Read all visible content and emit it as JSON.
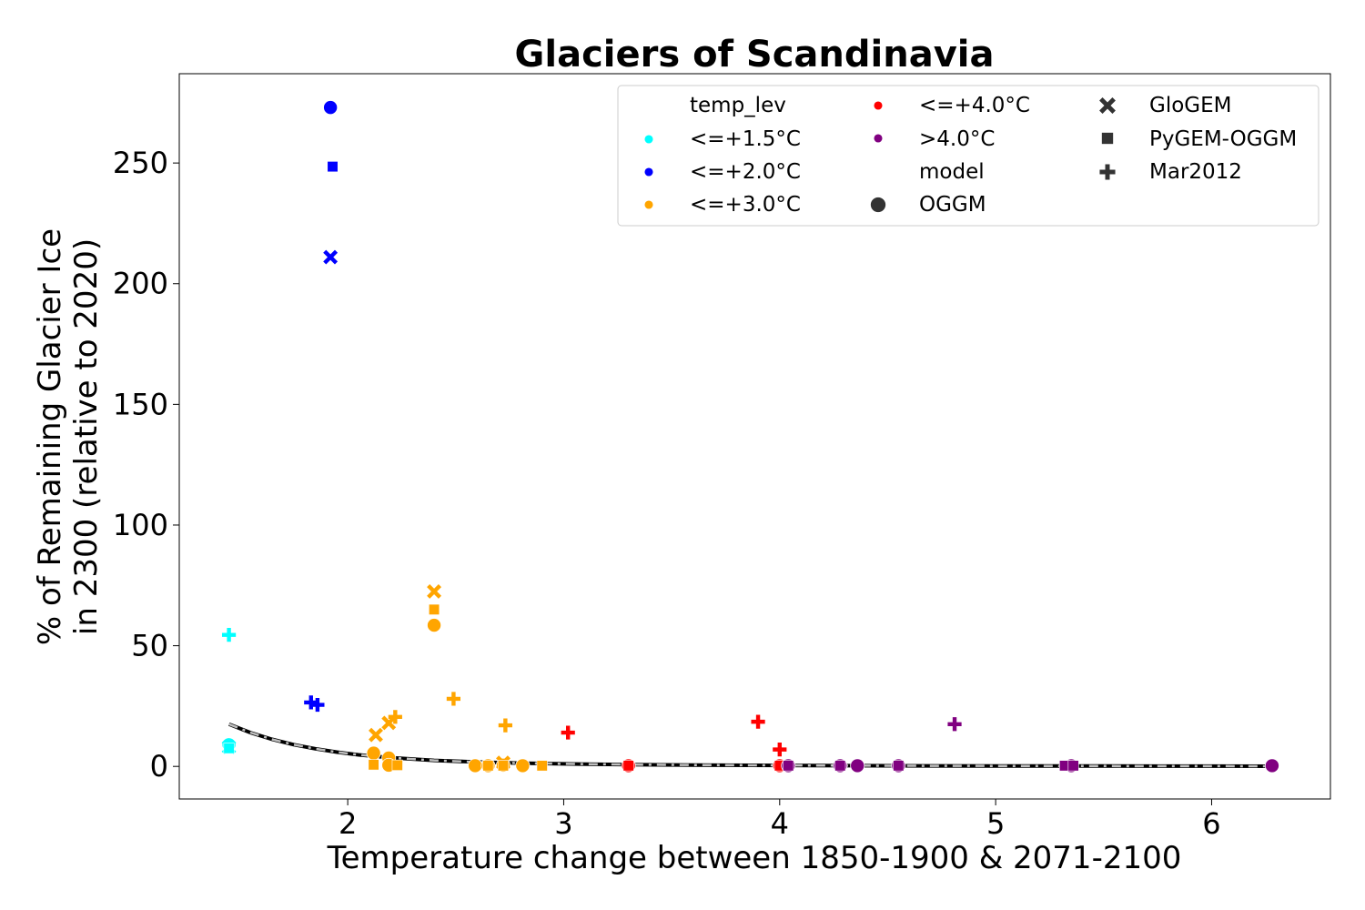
{
  "chart_data": {
    "type": "scatter",
    "title": "Glaciers of Scandinavia",
    "xlabel": "Temperature change between 1850-1900 & 2071-2100",
    "ylabel_lines": [
      "% of Remaining Glacier Ice",
      "in 2300 (relative to 2020)"
    ],
    "xlim": [
      1.22,
      6.55
    ],
    "ylim": [
      -13.5,
      287
    ],
    "xticks": [
      2,
      3,
      4,
      5,
      6
    ],
    "yticks": [
      0,
      50,
      100,
      150,
      200,
      250
    ],
    "grid": false,
    "legend_placement": "top-right",
    "colors": {
      "<=+1.5°C": "#00ffff",
      "<=+2.0°C": "#0000ff",
      "<=+3.0°C": "#ffa500",
      "<=+4.0°C": "#ff0000",
      ">4.0°C": "#800080",
      "fit": "#000000",
      "fit_dash": "#bfbfbf"
    },
    "legend": {
      "temp_title": "temp_lev",
      "model_title": "model",
      "temp_levels": [
        "<=+1.5°C",
        "<=+2.0°C",
        "<=+3.0°C",
        "<=+4.0°C",
        ">4.0°C"
      ],
      "models": [
        {
          "name": "OGGM",
          "marker": "circle"
        },
        {
          "name": "GloGEM",
          "marker": "x"
        },
        {
          "name": "PyGEM-OGGM",
          "marker": "square"
        },
        {
          "name": "Mar2012",
          "marker": "plus"
        }
      ]
    },
    "points": [
      {
        "x": 1.45,
        "y": 9,
        "level": "<=+1.5°C",
        "model": "OGGM"
      },
      {
        "x": 1.45,
        "y": 8,
        "level": "<=+1.5°C",
        "model": "GloGEM"
      },
      {
        "x": 1.45,
        "y": 7.5,
        "level": "<=+1.5°C",
        "model": "PyGEM-OGGM"
      },
      {
        "x": 1.45,
        "y": 54.5,
        "level": "<=+1.5°C",
        "model": "Mar2012"
      },
      {
        "x": 1.92,
        "y": 273,
        "level": "<=+2.0°C",
        "model": "OGGM"
      },
      {
        "x": 1.92,
        "y": 211,
        "level": "<=+2.0°C",
        "model": "GloGEM"
      },
      {
        "x": 1.93,
        "y": 248.5,
        "level": "<=+2.0°C",
        "model": "PyGEM-OGGM"
      },
      {
        "x": 1.83,
        "y": 26.5,
        "level": "<=+2.0°C",
        "model": "Mar2012"
      },
      {
        "x": 1.86,
        "y": 25.5,
        "level": "<=+2.0°C",
        "model": "Mar2012"
      },
      {
        "x": 2.12,
        "y": 5.5,
        "level": "<=+3.0°C",
        "model": "OGGM"
      },
      {
        "x": 2.19,
        "y": 3.5,
        "level": "<=+3.0°C",
        "model": "OGGM"
      },
      {
        "x": 2.19,
        "y": 0.5,
        "level": "<=+3.0°C",
        "model": "OGGM"
      },
      {
        "x": 2.4,
        "y": 58.5,
        "level": "<=+3.0°C",
        "model": "OGGM"
      },
      {
        "x": 2.59,
        "y": 0.3,
        "level": "<=+3.0°C",
        "model": "OGGM"
      },
      {
        "x": 2.65,
        "y": 0.3,
        "level": "<=+3.0°C",
        "model": "OGGM"
      },
      {
        "x": 2.72,
        "y": 0.5,
        "level": "<=+3.0°C",
        "model": "OGGM"
      },
      {
        "x": 2.81,
        "y": 0.3,
        "level": "<=+3.0°C",
        "model": "OGGM"
      },
      {
        "x": 2.13,
        "y": 13,
        "level": "<=+3.0°C",
        "model": "GloGEM"
      },
      {
        "x": 2.19,
        "y": 18,
        "level": "<=+3.0°C",
        "model": "GloGEM"
      },
      {
        "x": 2.4,
        "y": 72.5,
        "level": "<=+3.0°C",
        "model": "GloGEM"
      },
      {
        "x": 2.72,
        "y": 1.5,
        "level": "<=+3.0°C",
        "model": "GloGEM"
      },
      {
        "x": 2.12,
        "y": 0.7,
        "level": "<=+3.0°C",
        "model": "PyGEM-OGGM"
      },
      {
        "x": 2.23,
        "y": 0.5,
        "level": "<=+3.0°C",
        "model": "PyGEM-OGGM"
      },
      {
        "x": 2.4,
        "y": 65,
        "level": "<=+3.0°C",
        "model": "PyGEM-OGGM"
      },
      {
        "x": 2.65,
        "y": 0.3,
        "level": "<=+3.0°C",
        "model": "PyGEM-OGGM"
      },
      {
        "x": 2.72,
        "y": 0.3,
        "level": "<=+3.0°C",
        "model": "PyGEM-OGGM"
      },
      {
        "x": 2.9,
        "y": 0.3,
        "level": "<=+3.0°C",
        "model": "PyGEM-OGGM"
      },
      {
        "x": 2.22,
        "y": 20.5,
        "level": "<=+3.0°C",
        "model": "Mar2012"
      },
      {
        "x": 2.49,
        "y": 28,
        "level": "<=+3.0°C",
        "model": "Mar2012"
      },
      {
        "x": 2.73,
        "y": 17,
        "level": "<=+3.0°C",
        "model": "Mar2012"
      },
      {
        "x": 3.3,
        "y": 0.3,
        "level": "<=+4.0°C",
        "model": "OGGM"
      },
      {
        "x": 4.0,
        "y": 0.3,
        "level": "<=+4.0°C",
        "model": "OGGM"
      },
      {
        "x": 3.3,
        "y": 0.3,
        "level": "<=+4.0°C",
        "model": "PyGEM-OGGM"
      },
      {
        "x": 4.0,
        "y": 0.3,
        "level": "<=+4.0°C",
        "model": "PyGEM-OGGM"
      },
      {
        "x": 3.02,
        "y": 14,
        "level": "<=+4.0°C",
        "model": "Mar2012"
      },
      {
        "x": 3.9,
        "y": 18.5,
        "level": "<=+4.0°C",
        "model": "Mar2012"
      },
      {
        "x": 4.0,
        "y": 7,
        "level": "<=+4.0°C",
        "model": "Mar2012"
      },
      {
        "x": 4.04,
        "y": 0.3,
        "level": ">4.0°C",
        "model": "OGGM"
      },
      {
        "x": 4.28,
        "y": 0.3,
        "level": ">4.0°C",
        "model": "OGGM"
      },
      {
        "x": 4.36,
        "y": 0.3,
        "level": ">4.0°C",
        "model": "OGGM"
      },
      {
        "x": 4.55,
        "y": 0.3,
        "level": ">4.0°C",
        "model": "OGGM"
      },
      {
        "x": 5.35,
        "y": 0.3,
        "level": ">4.0°C",
        "model": "OGGM"
      },
      {
        "x": 6.28,
        "y": 0.3,
        "level": ">4.0°C",
        "model": "OGGM"
      },
      {
        "x": 4.04,
        "y": 0.3,
        "level": ">4.0°C",
        "model": "PyGEM-OGGM"
      },
      {
        "x": 4.28,
        "y": 0.3,
        "level": ">4.0°C",
        "model": "PyGEM-OGGM"
      },
      {
        "x": 4.55,
        "y": 0.3,
        "level": ">4.0°C",
        "model": "PyGEM-OGGM"
      },
      {
        "x": 5.32,
        "y": 0.3,
        "level": ">4.0°C",
        "model": "PyGEM-OGGM"
      },
      {
        "x": 5.36,
        "y": 0.3,
        "level": ">4.0°C",
        "model": "PyGEM-OGGM"
      },
      {
        "x": 4.81,
        "y": 17.5,
        "level": ">4.0°C",
        "model": "Mar2012"
      }
    ],
    "fit_curve": {
      "x": [
        1.45,
        1.55,
        1.65,
        1.75,
        1.85,
        1.95,
        2.05,
        2.2,
        2.4,
        2.6,
        2.8,
        3.0,
        3.3,
        3.6,
        4.0,
        4.5,
        5.0,
        5.5,
        6.0,
        6.28
      ],
      "y": [
        17.5,
        14.0,
        11.2,
        9.0,
        7.3,
        5.9,
        4.8,
        3.6,
        2.5,
        1.8,
        1.35,
        1.05,
        0.75,
        0.55,
        0.4,
        0.28,
        0.2,
        0.15,
        0.1,
        0.08
      ]
    }
  }
}
